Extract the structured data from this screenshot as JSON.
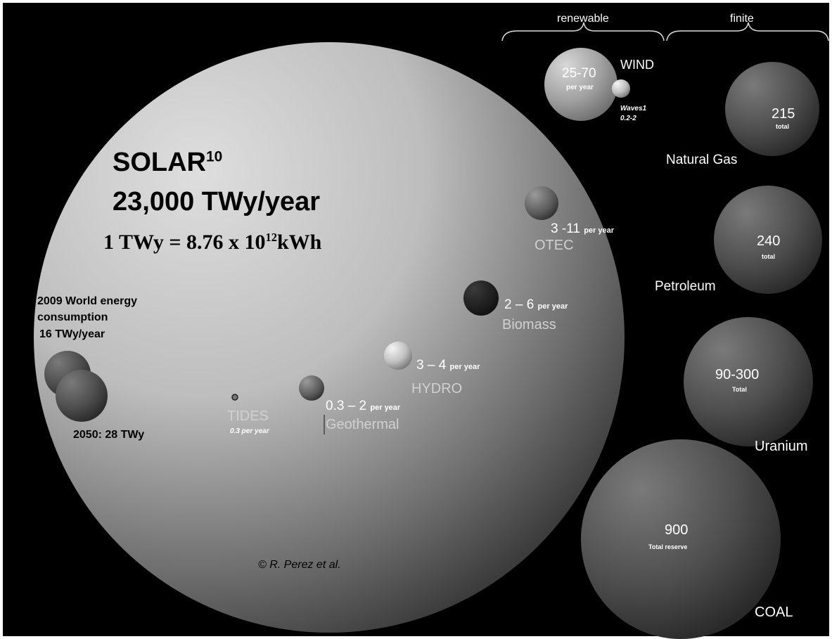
{
  "headers": {
    "renewable": "renewable",
    "finite": "finite"
  },
  "solar": {
    "title": "SOLAR",
    "title_sup": "10",
    "value": "23,000 TWy/year",
    "conversion_prefix": "1 TWy = 8.76 x 10",
    "conversion_exp": "12",
    "conversion_suffix": "kWh"
  },
  "consumption": {
    "line1": "2009 World energy",
    "line2": "consumption",
    "line3": "16 TWy/year",
    "future": "2050:  28 TWy"
  },
  "renewables": {
    "wind": {
      "name": "WIND",
      "value": "25-70",
      "unit": "per year"
    },
    "waves": {
      "line1": "Waves1",
      "line2": "0.2-2"
    },
    "otec": {
      "name": "OTEC",
      "value": "3 -11",
      "unit": "per year"
    },
    "biomass": {
      "name": "Biomass",
      "value": "2 – 6",
      "unit": "per year"
    },
    "hydro": {
      "name": "HYDRO",
      "value": "3 – 4",
      "unit": "per year"
    },
    "geothermal": {
      "name": "Geothermal",
      "value": "0.3 – 2",
      "unit": "per year"
    },
    "tides": {
      "name": "TIDES",
      "unit": "0.3 per year"
    }
  },
  "finite": {
    "natural_gas": {
      "name": "Natural Gas",
      "value": "215",
      "unit": "total"
    },
    "petroleum": {
      "name": "Petroleum",
      "value": "240",
      "unit": "total"
    },
    "uranium": {
      "name": "Uranium",
      "value": "90-300",
      "unit": "Total"
    },
    "coal": {
      "name": "COAL",
      "value": "900",
      "unit": "Total reserve"
    }
  },
  "credit": "© R. Perez et al.",
  "colors": {
    "background": "#000000",
    "solar_light": "#d4d4d4",
    "solar_dark": "#3a3a3a",
    "finite_sphere": "#5a5a5a"
  }
}
